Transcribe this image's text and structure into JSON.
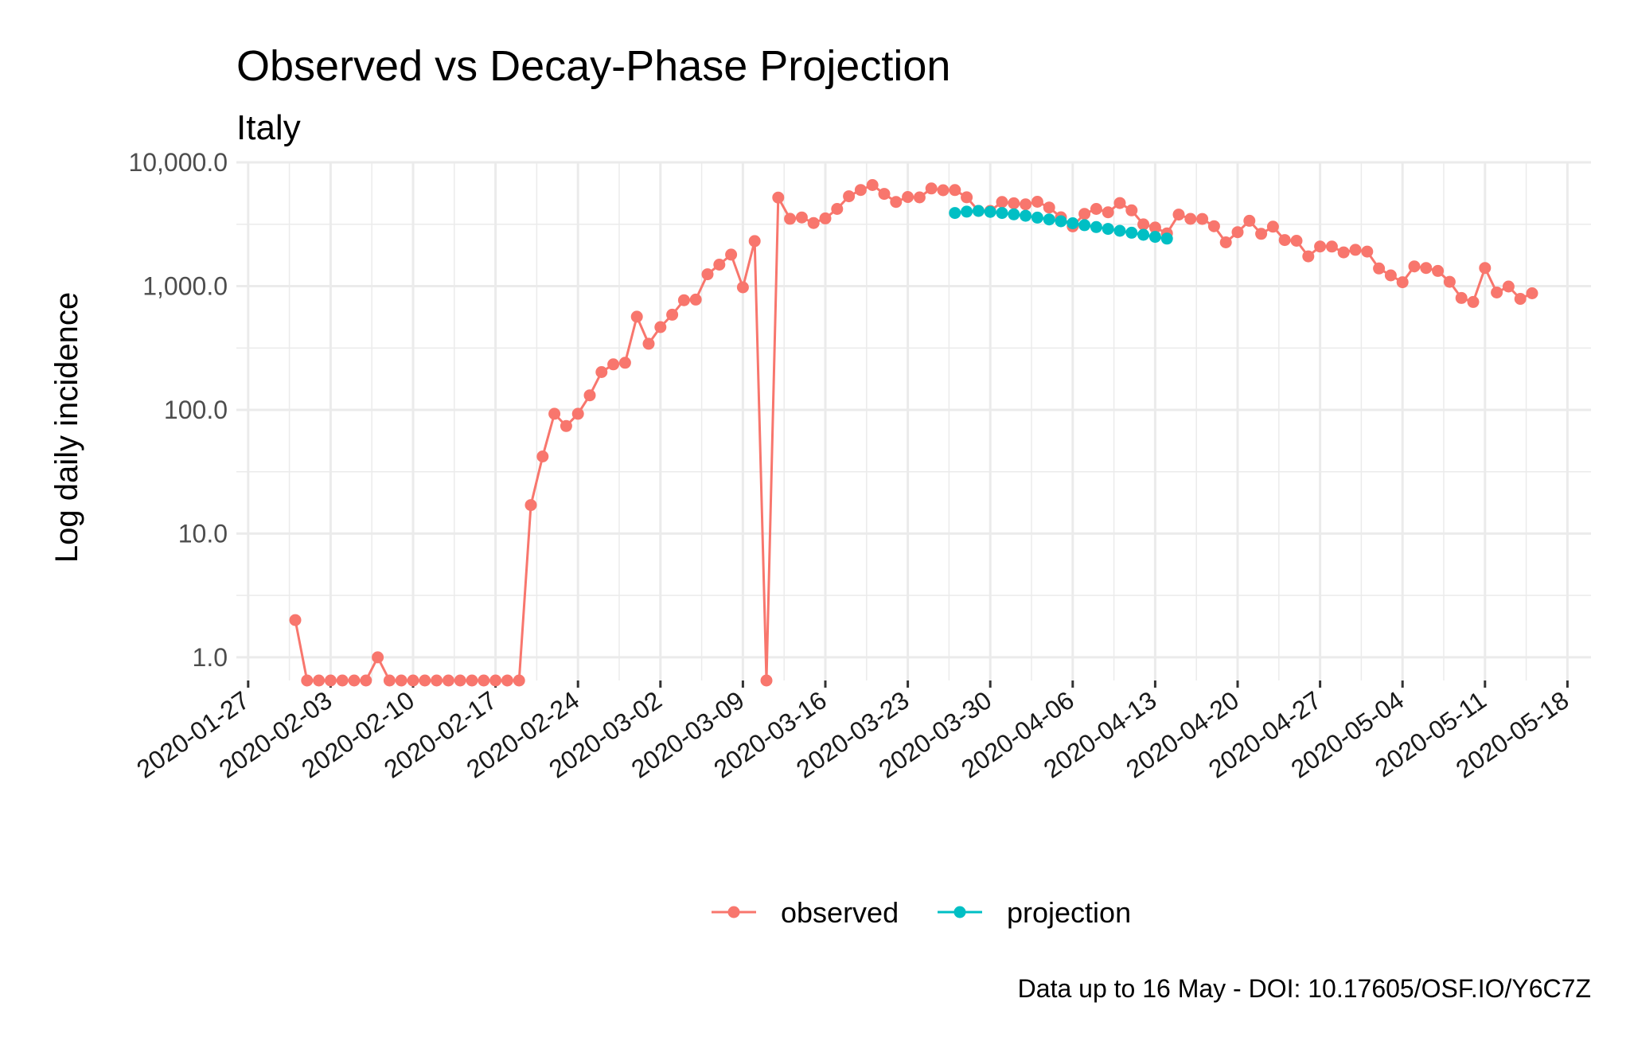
{
  "chart_data": {
    "type": "line",
    "title": "Observed vs Decay-Phase Projection",
    "subtitle": "Italy",
    "xlabel": "",
    "ylabel": "Log daily incidence",
    "caption": "Data up to 16 May - DOI: 10.17605/OSF.IO/Y6C7Z",
    "y_scale": "log10",
    "ylim": [
      0.65,
      10000
    ],
    "xlim": [
      "2020-01-26",
      "2020-05-20"
    ],
    "grid": true,
    "legend_position": "bottom",
    "y_ticks": [
      {
        "value": 1,
        "label": "1.0"
      },
      {
        "value": 10,
        "label": "10.0"
      },
      {
        "value": 100,
        "label": "100.0"
      },
      {
        "value": 1000,
        "label": "1,000.0"
      },
      {
        "value": 10000,
        "label": "10,000.0"
      }
    ],
    "x_ticks": [
      "2020-01-27",
      "2020-02-03",
      "2020-02-10",
      "2020-02-17",
      "2020-02-24",
      "2020-03-02",
      "2020-03-09",
      "2020-03-16",
      "2020-03-23",
      "2020-03-30",
      "2020-04-06",
      "2020-04-13",
      "2020-04-20",
      "2020-04-27",
      "2020-05-04",
      "2020-05-11",
      "2020-05-18"
    ],
    "series": [
      {
        "name": "observed",
        "color": "#F8766D",
        "start_date": "2020-01-31",
        "values": [
          2,
          0.65,
          0.65,
          0.65,
          0.65,
          0.65,
          0.65,
          1,
          0.65,
          0.65,
          0.65,
          0.65,
          0.65,
          0.65,
          0.65,
          0.65,
          0.65,
          0.65,
          0.65,
          0.65,
          17,
          42,
          93,
          74,
          93,
          131,
          202,
          233,
          240,
          566,
          342,
          466,
          587,
          769,
          778,
          1247,
          1492,
          1797,
          977,
          2313,
          0.65,
          5198,
          3497,
          3590,
          3233,
          3526,
          4207,
          5322,
          5986,
          6557,
          5560,
          4789,
          5249,
          5210,
          6153,
          5959,
          5974,
          5217,
          4050,
          4053,
          4782,
          4668,
          4585,
          4805,
          4316,
          3599,
          3039,
          3836,
          4204,
          3951,
          4694,
          4092,
          3153,
          2972,
          2667,
          3786,
          3493,
          3491,
          3047,
          2256,
          2729,
          3370,
          2646,
          3021,
          2357,
          2324,
          1739,
          2091,
          2086,
          1872,
          1965,
          1900,
          1389,
          1221,
          1075,
          1444,
          1401,
          1327,
          1083,
          802,
          744,
          1402,
          888,
          992,
          789,
          875
        ]
      },
      {
        "name": "projection",
        "color": "#00BFC4",
        "start_date": "2020-03-27",
        "values": [
          3900,
          4000,
          4050,
          3980,
          3900,
          3800,
          3700,
          3580,
          3460,
          3340,
          3220,
          3110,
          3000,
          2900,
          2800,
          2700,
          2600,
          2500,
          2420
        ]
      }
    ]
  }
}
